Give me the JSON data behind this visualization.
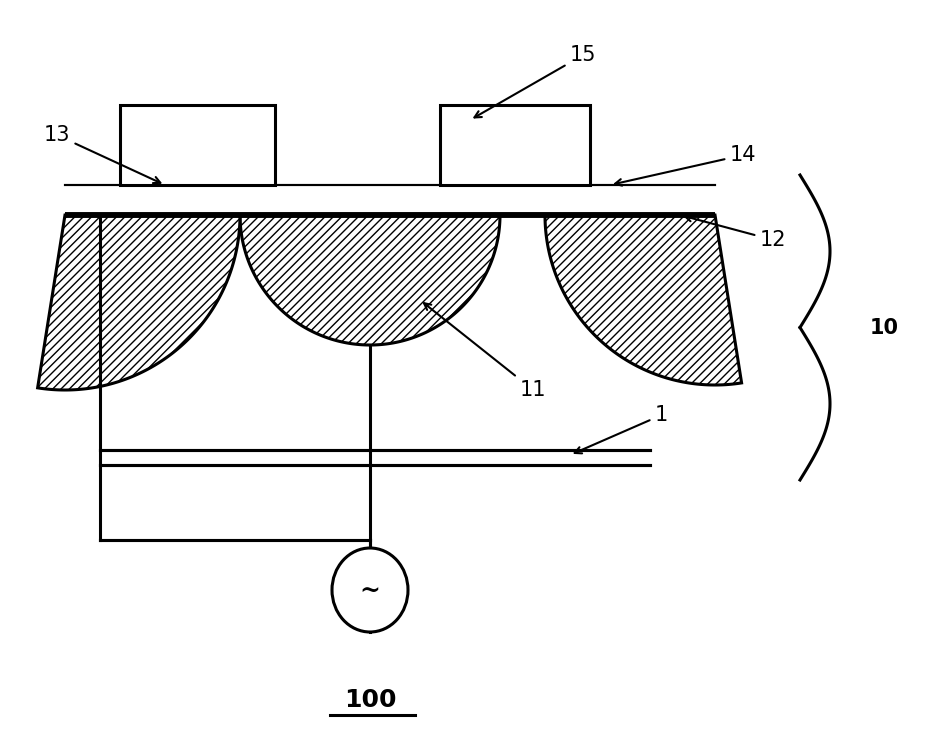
{
  "bg_color": "#ffffff",
  "line_color": "#000000",
  "fig_width": 9.4,
  "fig_height": 7.43,
  "lw_main": 2.2,
  "lw_thick": 4.0,
  "lw_thin": 1.5,
  "label_fs": 15
}
